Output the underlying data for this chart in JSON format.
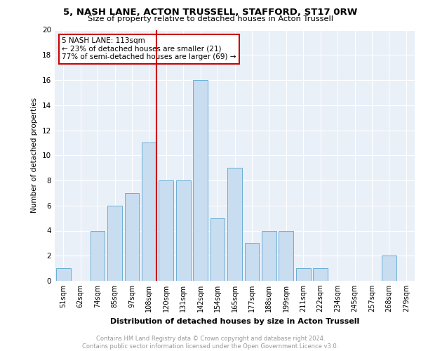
{
  "title1": "5, NASH LANE, ACTON TRUSSELL, STAFFORD, ST17 0RW",
  "title2": "Size of property relative to detached houses in Acton Trussell",
  "xlabel": "Distribution of detached houses by size in Acton Trussell",
  "ylabel": "Number of detached properties",
  "categories": [
    "51sqm",
    "62sqm",
    "74sqm",
    "85sqm",
    "97sqm",
    "108sqm",
    "120sqm",
    "131sqm",
    "142sqm",
    "154sqm",
    "165sqm",
    "177sqm",
    "188sqm",
    "199sqm",
    "211sqm",
    "222sqm",
    "234sqm",
    "245sqm",
    "257sqm",
    "268sqm",
    "279sqm"
  ],
  "values": [
    1,
    0,
    4,
    6,
    7,
    11,
    8,
    8,
    16,
    5,
    9,
    3,
    4,
    4,
    1,
    1,
    0,
    0,
    0,
    2,
    0
  ],
  "bar_color": "#c8ddf0",
  "bar_edge_color": "#6aaed6",
  "subject_line_color": "#cc0000",
  "annotation_text": "5 NASH LANE: 113sqm\n← 23% of detached houses are smaller (21)\n77% of semi-detached houses are larger (69) →",
  "annotation_box_color": "#ffffff",
  "annotation_box_edge": "#cc0000",
  "ylim": [
    0,
    20
  ],
  "yticks": [
    0,
    2,
    4,
    6,
    8,
    10,
    12,
    14,
    16,
    18,
    20
  ],
  "footnote": "Contains HM Land Registry data © Crown copyright and database right 2024.\nContains public sector information licensed under the Open Government Licence v3.0.",
  "background_color": "#eaf0f8",
  "grid_color": "#ffffff"
}
